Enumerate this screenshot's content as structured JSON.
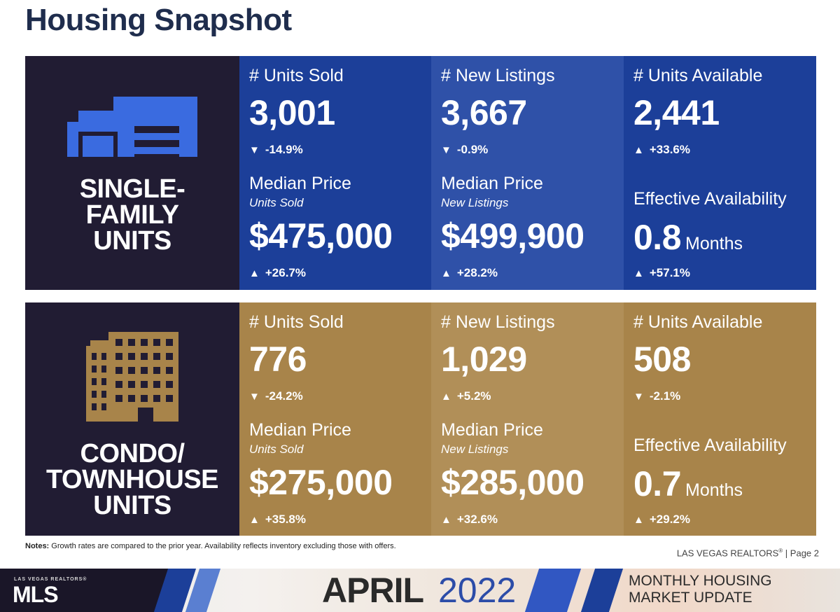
{
  "page": {
    "title": "Housing Snapshot"
  },
  "single_family": {
    "label_lines": [
      "SINGLE-",
      "FAMILY",
      "UNITS"
    ],
    "icon": "house-icon",
    "units_sold": {
      "label": "# Units Sold",
      "value": "3,001",
      "change": "-14.9%",
      "direction": "down"
    },
    "new_listings": {
      "label": "# New Listings",
      "value": "3,667",
      "change": "-0.9%",
      "direction": "down"
    },
    "units_available": {
      "label": "# Units Available",
      "value": "2,441",
      "change": "+33.6%",
      "direction": "up"
    },
    "median_sold": {
      "label": "Median Price",
      "sublabel": "Units Sold",
      "value": "$475,000",
      "change": "+26.7%",
      "direction": "up"
    },
    "median_listings": {
      "label": "Median Price",
      "sublabel": "New Listings",
      "value": "$499,900",
      "change": "+28.2%",
      "direction": "up"
    },
    "availability": {
      "label": "Effective Availability",
      "value": "0.8",
      "unit": "Months",
      "change": "+57.1%",
      "direction": "up"
    }
  },
  "condo": {
    "label_lines": [
      "CONDO/",
      "TOWNHOUSE",
      "UNITS"
    ],
    "icon": "building-icon",
    "units_sold": {
      "label": "# Units Sold",
      "value": "776",
      "change": "-24.2%",
      "direction": "down"
    },
    "new_listings": {
      "label": "# New Listings",
      "value": "1,029",
      "change": "+5.2%",
      "direction": "up"
    },
    "units_available": {
      "label": "# Units Available",
      "value": "508",
      "change": "-2.1%",
      "direction": "down"
    },
    "median_sold": {
      "label": "Median Price",
      "sublabel": "Units Sold",
      "value": "$275,000",
      "change": "+35.8%",
      "direction": "up"
    },
    "median_listings": {
      "label": "Median Price",
      "sublabel": "New Listings",
      "value": "$285,000",
      "change": "+32.6%",
      "direction": "up"
    },
    "availability": {
      "label": "Effective Availability",
      "value": "0.7",
      "unit": "Months",
      "change": "+29.2%",
      "direction": "up"
    }
  },
  "arrows": {
    "up": "▲",
    "down": "▼"
  },
  "notes": {
    "prefix": "Notes:",
    "text": " Growth rates are compared to the prior year. Availability reflects inventory excluding those with offers."
  },
  "page_ref": {
    "org": "LAS VEGAS REALTORS",
    "reg": "®",
    "page": " | Page 2"
  },
  "footer": {
    "logo_top": "LAS VEGAS REALTORS®",
    "logo_main": "MLS",
    "month": "APRIL",
    "year": "2022",
    "update_lines": [
      "MONTHLY HOUSING",
      "MARKET UPDATE"
    ]
  },
  "colors": {
    "navy": "#211c33",
    "blue": "#1c3f99",
    "blue_light": "#2f51a8",
    "gold": "#a8844a",
    "gold_light": "#b18f58",
    "title": "#1f2d4d",
    "icon_blue": "#3a6be0",
    "icon_gold": "#a8844a"
  }
}
